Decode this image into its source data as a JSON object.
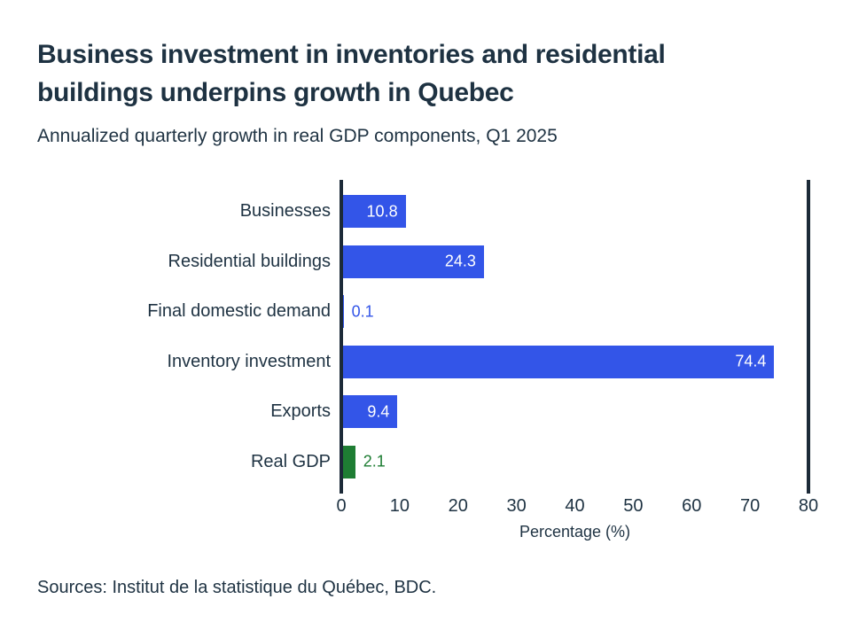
{
  "header": {
    "title": "Business investment in inventories and residential buildings underpins growth in Quebec",
    "title_lines": [
      "Business investment in inventories and residential",
      "buildings underpins growth in Quebec"
    ],
    "subtitle": "Annualized quarterly growth in real GDP components, Q1 2025"
  },
  "chart_data": {
    "type": "bar",
    "orientation": "horizontal",
    "title": "Business investment in inventories and residential buildings underpins growth in Quebec",
    "subtitle": "Annualized quarterly growth in real GDP components, Q1 2025",
    "categories": [
      "Businesses",
      "Residential buildings",
      "Final domestic demand",
      "Inventory investment",
      "Exports",
      "Real GDP"
    ],
    "values": [
      10.8,
      24.3,
      0.1,
      74.4,
      9.4,
      2.1
    ],
    "value_labels": [
      "10.8",
      "24.3",
      "0.1",
      "74.4",
      "9.4",
      "2.1"
    ],
    "value_label_positions": [
      "inside",
      "inside",
      "outside",
      "inside",
      "inside",
      "outside"
    ],
    "bar_colors": [
      "#3355E8",
      "#3355E8",
      "#3355E8",
      "#3355E8",
      "#3355E8",
      "#1E7D33"
    ],
    "xlabel": "Percentage (%)",
    "x_ticks": [
      "0",
      "10",
      "20",
      "30",
      "40",
      "50",
      "60",
      "70",
      "80"
    ],
    "xlim": [
      0,
      80
    ],
    "grid": false,
    "legend": false
  },
  "footer": {
    "source": "Sources: Institut de la statistique du Québec, BDC."
  },
  "colors": {
    "bar_blue": "#3355E8",
    "bar_green": "#1E7D33",
    "axis_line": "#1C2A38",
    "text_dark": "#1E3242",
    "background": "#FFFFFF"
  }
}
